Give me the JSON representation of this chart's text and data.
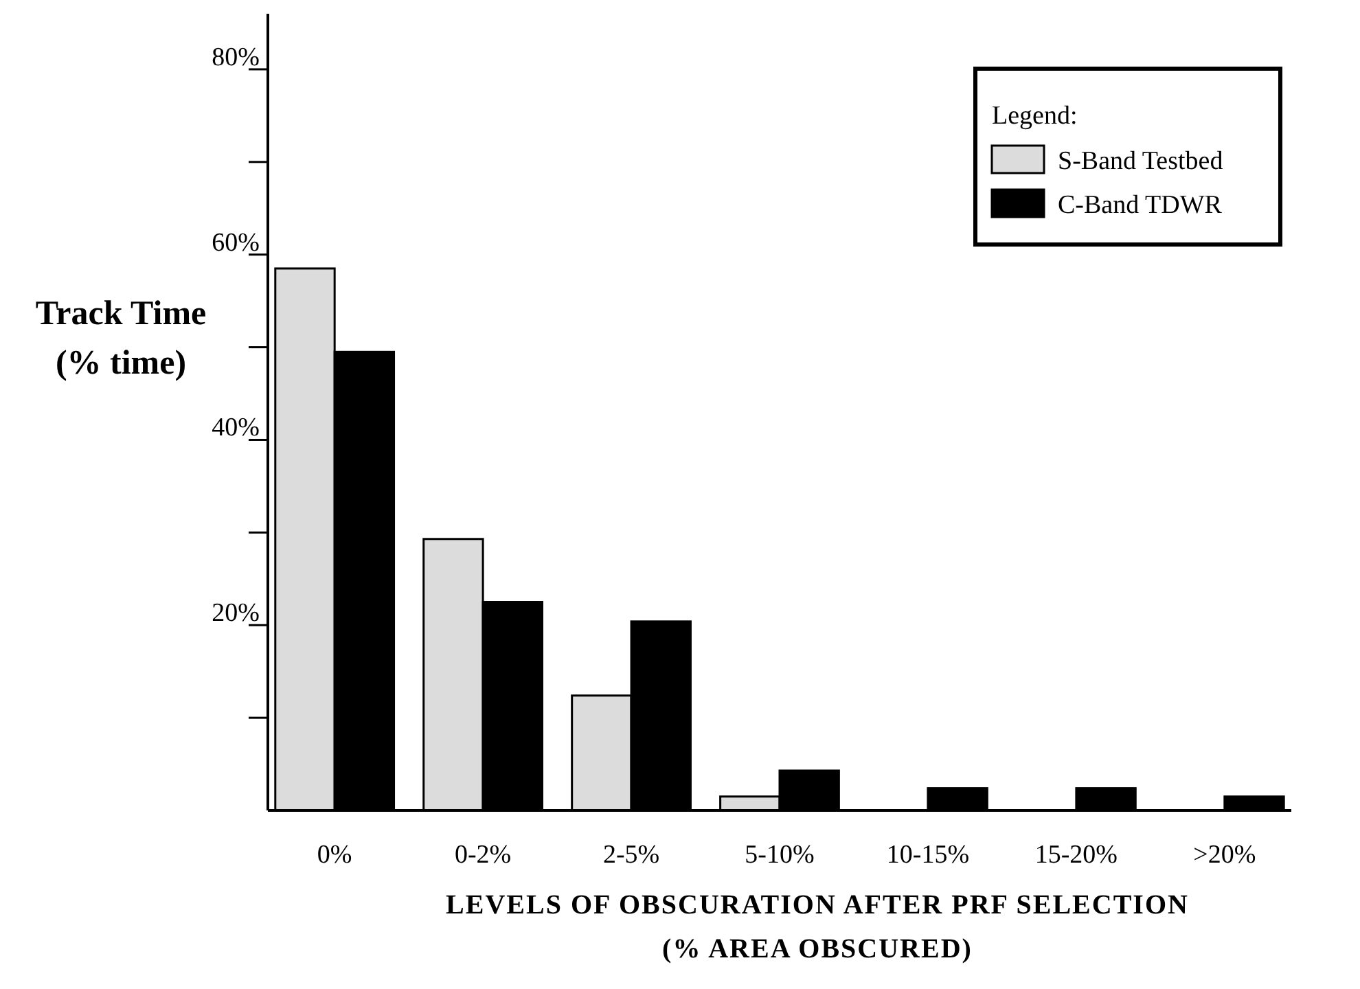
{
  "chart_data": {
    "type": "bar",
    "xlabel": "LEVELS OF OBSCURATION AFTER PRF SELECTION\n(% AREA OBSCURED)",
    "ylabel": "Track Time\n(% time)",
    "legend_title": "Legend:",
    "legend": "top right",
    "grid": false,
    "categories": [
      "0%",
      "0-2%",
      "2-5%",
      "5-10%",
      "10-15%",
      "15-20%",
      ">20%"
    ],
    "ylim": [
      0,
      86
    ],
    "yticks": [
      {
        "value": 10,
        "label": null
      },
      {
        "value": 20,
        "label": "20%"
      },
      {
        "value": 30,
        "label": null
      },
      {
        "value": 40,
        "label": "40%"
      },
      {
        "value": 50,
        "label": null
      },
      {
        "value": 60,
        "label": "60%"
      },
      {
        "value": 70,
        "label": null
      },
      {
        "value": 80,
        "label": "80%"
      }
    ],
    "series": [
      {
        "name": "S-Band Testbed",
        "color": "#dcdcdc",
        "values": [
          58.5,
          29.3,
          12.4,
          1.5,
          0,
          0,
          0
        ]
      },
      {
        "name": "C-Band TDWR",
        "color": "#000000",
        "values": [
          49.5,
          22.5,
          20.4,
          4.3,
          2.4,
          2.4,
          1.5
        ]
      }
    ]
  }
}
